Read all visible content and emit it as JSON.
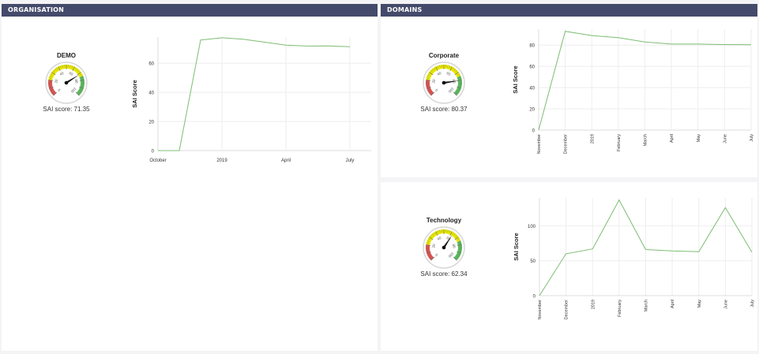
{
  "panels": {
    "organisation": {
      "title": "ORGANISATION"
    },
    "domains": {
      "title": "DOMAINS"
    }
  },
  "gauges": {
    "demo": {
      "name": "DEMO",
      "label": "SAI score: 71.35",
      "value": 71.35
    },
    "corporate": {
      "name": "Corporate",
      "label": "SAI score: 80.37",
      "value": 80.37
    },
    "technology": {
      "name": "Technology",
      "label": "SAI score: 62.34",
      "value": 62.34
    }
  },
  "gauge_ticks": [
    "0",
    "20",
    "40",
    "60",
    "80",
    "100"
  ],
  "colors": {
    "line": "#7dbd73",
    "grid": "#eeeeee",
    "header": "#444a6a"
  },
  "chart_data": [
    {
      "type": "line",
      "ylabel": "SAI Score",
      "xlabel": "",
      "title": "",
      "xlim": [
        0,
        10
      ],
      "ylim": [
        0,
        78
      ],
      "yticks": [
        0,
        20,
        40,
        60
      ],
      "xticks": [
        {
          "label": "October",
          "x": 0
        },
        {
          "label": "2019",
          "x": 3
        },
        {
          "label": "April",
          "x": 6
        },
        {
          "label": "July",
          "x": 9
        }
      ],
      "x": [
        0,
        1,
        2,
        3,
        4,
        5,
        6,
        7,
        8,
        9
      ],
      "y": [
        0,
        0,
        76,
        77.5,
        76.5,
        74.5,
        72.5,
        71.8,
        71.9,
        71.35
      ]
    },
    {
      "type": "line",
      "ylabel": "SAI Score",
      "xlabel": "",
      "title": "",
      "xlim": [
        0,
        8
      ],
      "ylim": [
        0,
        95
      ],
      "yticks": [
        0,
        20,
        40,
        60,
        80
      ],
      "xticks": [
        {
          "label": "November",
          "x": 0
        },
        {
          "label": "December",
          "x": 1
        },
        {
          "label": "2019",
          "x": 2
        },
        {
          "label": "February",
          "x": 3
        },
        {
          "label": "March",
          "x": 4
        },
        {
          "label": "April",
          "x": 5
        },
        {
          "label": "May",
          "x": 6
        },
        {
          "label": "June",
          "x": 7
        },
        {
          "label": "July",
          "x": 8
        }
      ],
      "x": [
        0,
        1,
        2,
        3,
        4,
        5,
        6,
        7,
        8
      ],
      "y": [
        0,
        93,
        89,
        87,
        83,
        81,
        81,
        80.5,
        80.37
      ]
    },
    {
      "type": "line",
      "ylabel": "SAI Score",
      "xlabel": "",
      "title": "",
      "xlim": [
        0,
        8
      ],
      "ylim": [
        0,
        140
      ],
      "yticks": [
        0,
        50,
        100
      ],
      "xticks": [
        {
          "label": "November",
          "x": 0
        },
        {
          "label": "December",
          "x": 1
        },
        {
          "label": "2019",
          "x": 2
        },
        {
          "label": "February",
          "x": 3
        },
        {
          "label": "March",
          "x": 4
        },
        {
          "label": "April",
          "x": 5
        },
        {
          "label": "May",
          "x": 6
        },
        {
          "label": "June",
          "x": 7
        },
        {
          "label": "July",
          "x": 8
        }
      ],
      "x": [
        0,
        1,
        2,
        3,
        4,
        5,
        6,
        7,
        8
      ],
      "y": [
        0,
        60,
        67,
        137,
        66,
        64,
        63,
        126,
        62.34
      ]
    }
  ]
}
